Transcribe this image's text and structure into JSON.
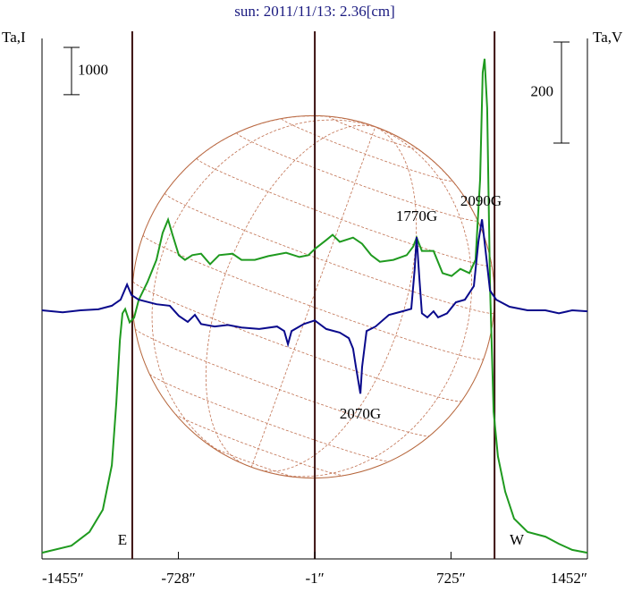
{
  "chart_data": {
    "type": "line",
    "title": "sun: 2011/11/13: 2.36[cm]",
    "ylabel": "Ta,I",
    "y2label": "Ta,V",
    "xlim": [
      -1455,
      1452
    ],
    "xticks": [
      {
        "value": -1455,
        "label": "-1455″"
      },
      {
        "value": -728,
        "label": "-728″"
      },
      {
        "value": -1,
        "label": "-1″"
      },
      {
        "value": 725,
        "label": "725″"
      },
      {
        "value": 1452,
        "label": "1452″"
      }
    ],
    "ylim": [
      0,
      11000
    ],
    "y2lim": [
      -490,
      540
    ],
    "scale_bars": [
      1000,
      200
    ],
    "vlines": [
      -974,
      -1,
      957
    ],
    "annotations": [
      "1770G",
      "2090G",
      "2070G",
      "E",
      "W"
    ],
    "series": [
      {
        "color": "#1f9a1f",
        "axis": "y",
        "x": [
          -1455,
          -1298,
          -1202,
          -1131,
          -1083,
          -1059,
          -1040,
          -1026,
          -1012,
          -988,
          -964,
          -940,
          -893,
          -845,
          -812,
          -783,
          -759,
          -726,
          -693,
          -654,
          -607,
          -559,
          -511,
          -440,
          -392,
          -321,
          -249,
          -154,
          -83,
          -35,
          -1,
          60,
          94,
          132,
          203,
          251,
          299,
          346,
          418,
          489,
          523,
          542,
          570,
          632,
          680,
          728,
          775,
          823,
          856,
          880,
          894,
          904,
          918,
          933,
          952,
          975,
          1014,
          1061,
          1133,
          1228,
          1300,
          1371,
          1452
        ],
        "values": [
          130,
          280,
          570,
          1040,
          1980,
          3300,
          4620,
          5190,
          5280,
          5000,
          5100,
          5470,
          5850,
          6320,
          6890,
          7170,
          6850,
          6420,
          6320,
          6420,
          6450,
          6230,
          6420,
          6450,
          6320,
          6320,
          6400,
          6470,
          6380,
          6420,
          6550,
          6740,
          6850,
          6700,
          6790,
          6660,
          6420,
          6280,
          6320,
          6420,
          6600,
          6790,
          6510,
          6510,
          6040,
          5980,
          6130,
          6040,
          6320,
          8020,
          10280,
          10570,
          9530,
          5760,
          3110,
          2170,
          1420,
          850,
          570,
          470,
          320,
          190,
          130
        ]
      },
      {
        "color": "#0a0a8c",
        "axis": "y2",
        "x": [
          -1455,
          -1345,
          -1250,
          -1155,
          -1083,
          -1036,
          -1002,
          -978,
          -940,
          -845,
          -774,
          -726,
          -678,
          -640,
          -607,
          -535,
          -464,
          -392,
          -297,
          -202,
          -164,
          -144,
          -125,
          -59,
          -1,
          60,
          132,
          180,
          203,
          218,
          242,
          251,
          275,
          323,
          394,
          466,
          513,
          532,
          542,
          556,
          570,
          599,
          632,
          656,
          704,
          751,
          799,
          847,
          871,
          890,
          909,
          933,
          966,
          1037,
          1133,
          1228,
          1300,
          1371,
          1452
        ],
        "values": [
          2,
          -2,
          2,
          4,
          11,
          23,
          53,
          32,
          23,
          14,
          11,
          -9,
          -21,
          -7,
          -25,
          -30,
          -27,
          -32,
          -35,
          -30,
          -39,
          -65,
          -39,
          -25,
          -18,
          -35,
          -42,
          -53,
          -74,
          -110,
          -163,
          -110,
          -39,
          -30,
          -7,
          0,
          5,
          85,
          147,
          67,
          -4,
          -12,
          0,
          -12,
          -4,
          18,
          23,
          50,
          138,
          182,
          120,
          41,
          23,
          9,
          2,
          2,
          -4,
          2,
          0
        ]
      }
    ]
  }
}
